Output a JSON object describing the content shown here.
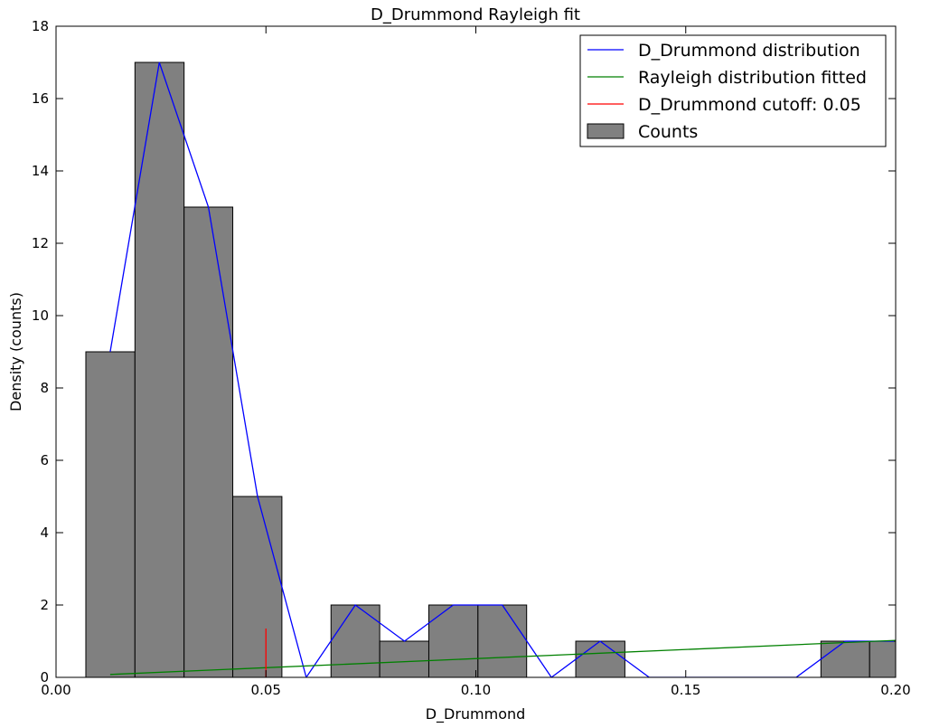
{
  "chart_data": {
    "type": "bar",
    "title": "D_Drummond Rayleigh fit",
    "xlabel": "D_Drummond",
    "ylabel": "Density (counts)",
    "xlim": [
      0.0,
      0.2
    ],
    "ylim": [
      0,
      18
    ],
    "x_ticks": [
      0.0,
      0.05,
      0.1,
      0.15,
      0.2
    ],
    "x_tick_labels": [
      "0.00",
      "0.05",
      "0.10",
      "0.15",
      "0.20"
    ],
    "y_ticks": [
      0,
      2,
      4,
      6,
      8,
      10,
      12,
      14,
      16,
      18
    ],
    "y_tick_labels": [
      "0",
      "2",
      "4",
      "6",
      "8",
      "10",
      "12",
      "14",
      "16",
      "18"
    ],
    "grid": false,
    "legend_position": "top-right",
    "legend": [
      {
        "label": "D_Drummond distribution",
        "kind": "line",
        "color": "#0000ff"
      },
      {
        "label": "Rayleigh distribution fitted",
        "kind": "line",
        "color": "#008000"
      },
      {
        "label": "D_Drummond cutoff: 0.05",
        "kind": "line",
        "color": "#ff0000"
      },
      {
        "label": "Counts",
        "kind": "patch",
        "color": "#808080"
      }
    ],
    "histogram": {
      "name": "Counts",
      "color": "#808080",
      "bins": [
        {
          "x0": 0.0071,
          "x1": 0.0188,
          "count": 9
        },
        {
          "x0": 0.0188,
          "x1": 0.0305,
          "count": 17
        },
        {
          "x0": 0.0305,
          "x1": 0.0421,
          "count": 13
        },
        {
          "x0": 0.0421,
          "x1": 0.0538,
          "count": 5
        },
        {
          "x0": 0.0655,
          "x1": 0.0771,
          "count": 2
        },
        {
          "x0": 0.0771,
          "x1": 0.0888,
          "count": 1
        },
        {
          "x0": 0.0888,
          "x1": 0.1005,
          "count": 2
        },
        {
          "x0": 0.1005,
          "x1": 0.1121,
          "count": 2
        },
        {
          "x0": 0.1238,
          "x1": 0.1355,
          "count": 1
        },
        {
          "x0": 0.1822,
          "x1": 0.1938,
          "count": 1
        },
        {
          "x0": 0.1938,
          "x1": 0.2055,
          "count": 1
        }
      ]
    },
    "distribution_line": {
      "name": "D_Drummond distribution",
      "color": "#0000ff",
      "x": [
        0.0129,
        0.0246,
        0.0363,
        0.048,
        0.0596,
        0.0713,
        0.083,
        0.0946,
        0.1063,
        0.118,
        0.1296,
        0.1413,
        0.153,
        0.1646,
        0.1763,
        0.188,
        0.1996
      ],
      "y": [
        9,
        17,
        13,
        5,
        0,
        2,
        1,
        2,
        2,
        0,
        1,
        0,
        0,
        0,
        0,
        1,
        1
      ]
    },
    "rayleigh_line": {
      "name": "Rayleigh distribution fitted",
      "color": "#008000",
      "x": [
        0.0129,
        0.2055
      ],
      "y": [
        0.08,
        1.05
      ]
    },
    "cutoff_line": {
      "name": "D_Drummond cutoff: 0.05",
      "color": "#ff0000",
      "x": 0.05,
      "y": [
        0,
        1.35
      ]
    }
  }
}
